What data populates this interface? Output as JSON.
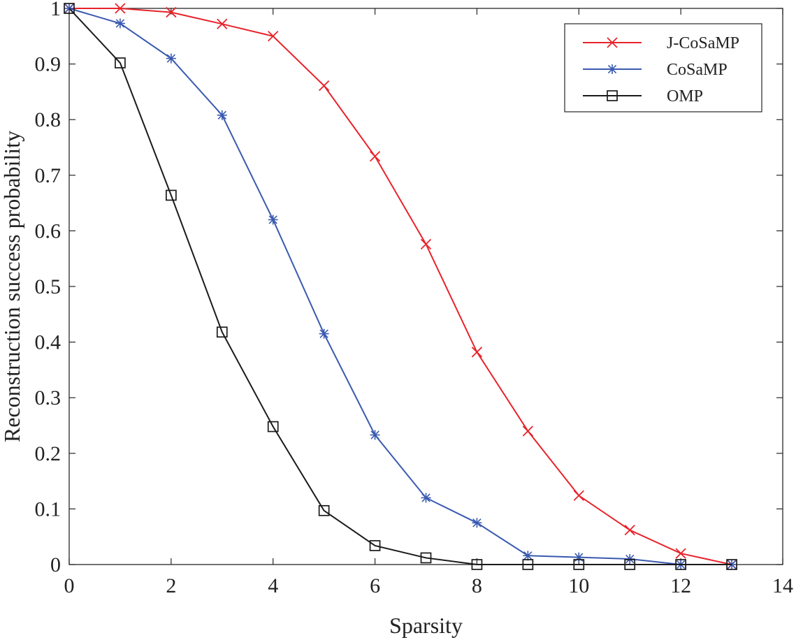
{
  "chart_data": {
    "type": "line",
    "title": "",
    "xlabel": "Sparsity",
    "ylabel": "Reconstruction success probability",
    "xlim": [
      0,
      14
    ],
    "ylim": [
      0,
      1
    ],
    "xticks": [
      0,
      2,
      4,
      6,
      8,
      10,
      12,
      14
    ],
    "xtick_labels": [
      "0",
      "2",
      "4",
      "6",
      "8",
      "10",
      "12",
      "14"
    ],
    "yticks": [
      0,
      0.1,
      0.2,
      0.3,
      0.4,
      0.5,
      0.6,
      0.7,
      0.8,
      0.9,
      1
    ],
    "ytick_labels": [
      "0",
      "0.1",
      "0.2",
      "0.3",
      "0.4",
      "0.5",
      "0.6",
      "0.7",
      "0.8",
      "0.9",
      "1"
    ],
    "grid": false,
    "legend_position": "top-right",
    "x": [
      0,
      1,
      2,
      3,
      4,
      5,
      6,
      7,
      8,
      9,
      10,
      11,
      12,
      13
    ],
    "series": [
      {
        "name": "J-CoSaMP",
        "color": "#e8232a",
        "marker": "x",
        "values": [
          1.0,
          1.0,
          0.993,
          0.972,
          0.95,
          0.861,
          0.734,
          0.576,
          0.382,
          0.24,
          0.124,
          0.062,
          0.02,
          0.0
        ]
      },
      {
        "name": "CoSaMP",
        "color": "#3a5ab0",
        "marker": "asterisk",
        "values": [
          1.0,
          0.973,
          0.91,
          0.808,
          0.62,
          0.415,
          0.233,
          0.12,
          0.075,
          0.016,
          0.013,
          0.01,
          0.0,
          0.0
        ]
      },
      {
        "name": "OMP",
        "color": "#1a1a1a",
        "marker": "square",
        "values": [
          1.0,
          0.902,
          0.664,
          0.418,
          0.248,
          0.097,
          0.034,
          0.012,
          0.0,
          0.0,
          0.0,
          0.0,
          0.0,
          0.0
        ]
      }
    ]
  }
}
